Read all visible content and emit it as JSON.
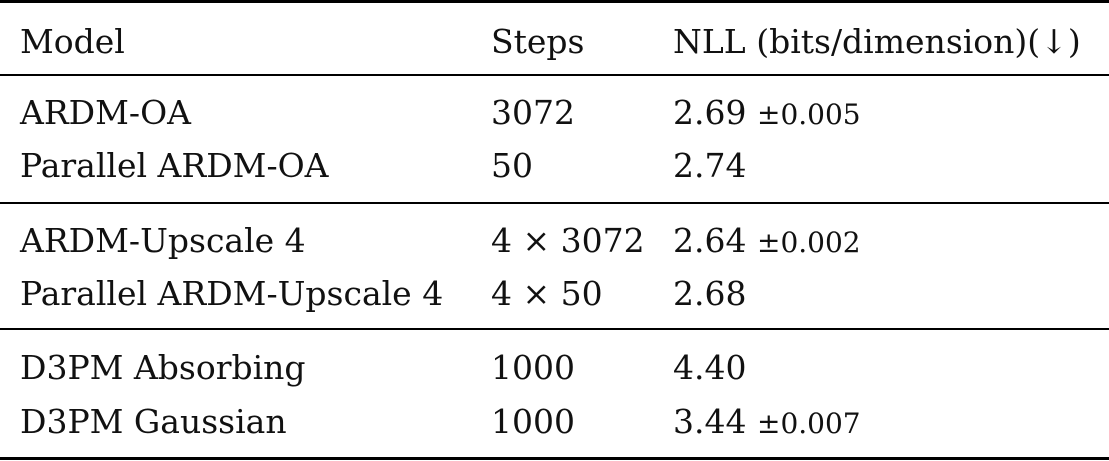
{
  "table": {
    "headers": {
      "model": "Model",
      "steps": "Steps",
      "nll": "NLL (bits/dimension)(↓)"
    },
    "rows": [
      {
        "model": "ARDM-OA",
        "steps": "3072",
        "nll": "2.69",
        "pm": "±0.005"
      },
      {
        "model": "Parallel ARDM-OA",
        "steps": "50",
        "nll": "2.74",
        "pm": ""
      },
      {
        "model": "ARDM-Upscale 4",
        "steps": "4 × 3072",
        "nll": "2.64",
        "pm": "±0.002"
      },
      {
        "model": "Parallel ARDM-Upscale 4",
        "steps": "4 × 50",
        "nll": "2.68",
        "pm": ""
      },
      {
        "model": "D3PM Absorbing",
        "steps": "1000",
        "nll": "4.40",
        "pm": ""
      },
      {
        "model": "D3PM Gaussian",
        "steps": "1000",
        "nll": "3.44",
        "pm": "±0.007"
      }
    ]
  }
}
